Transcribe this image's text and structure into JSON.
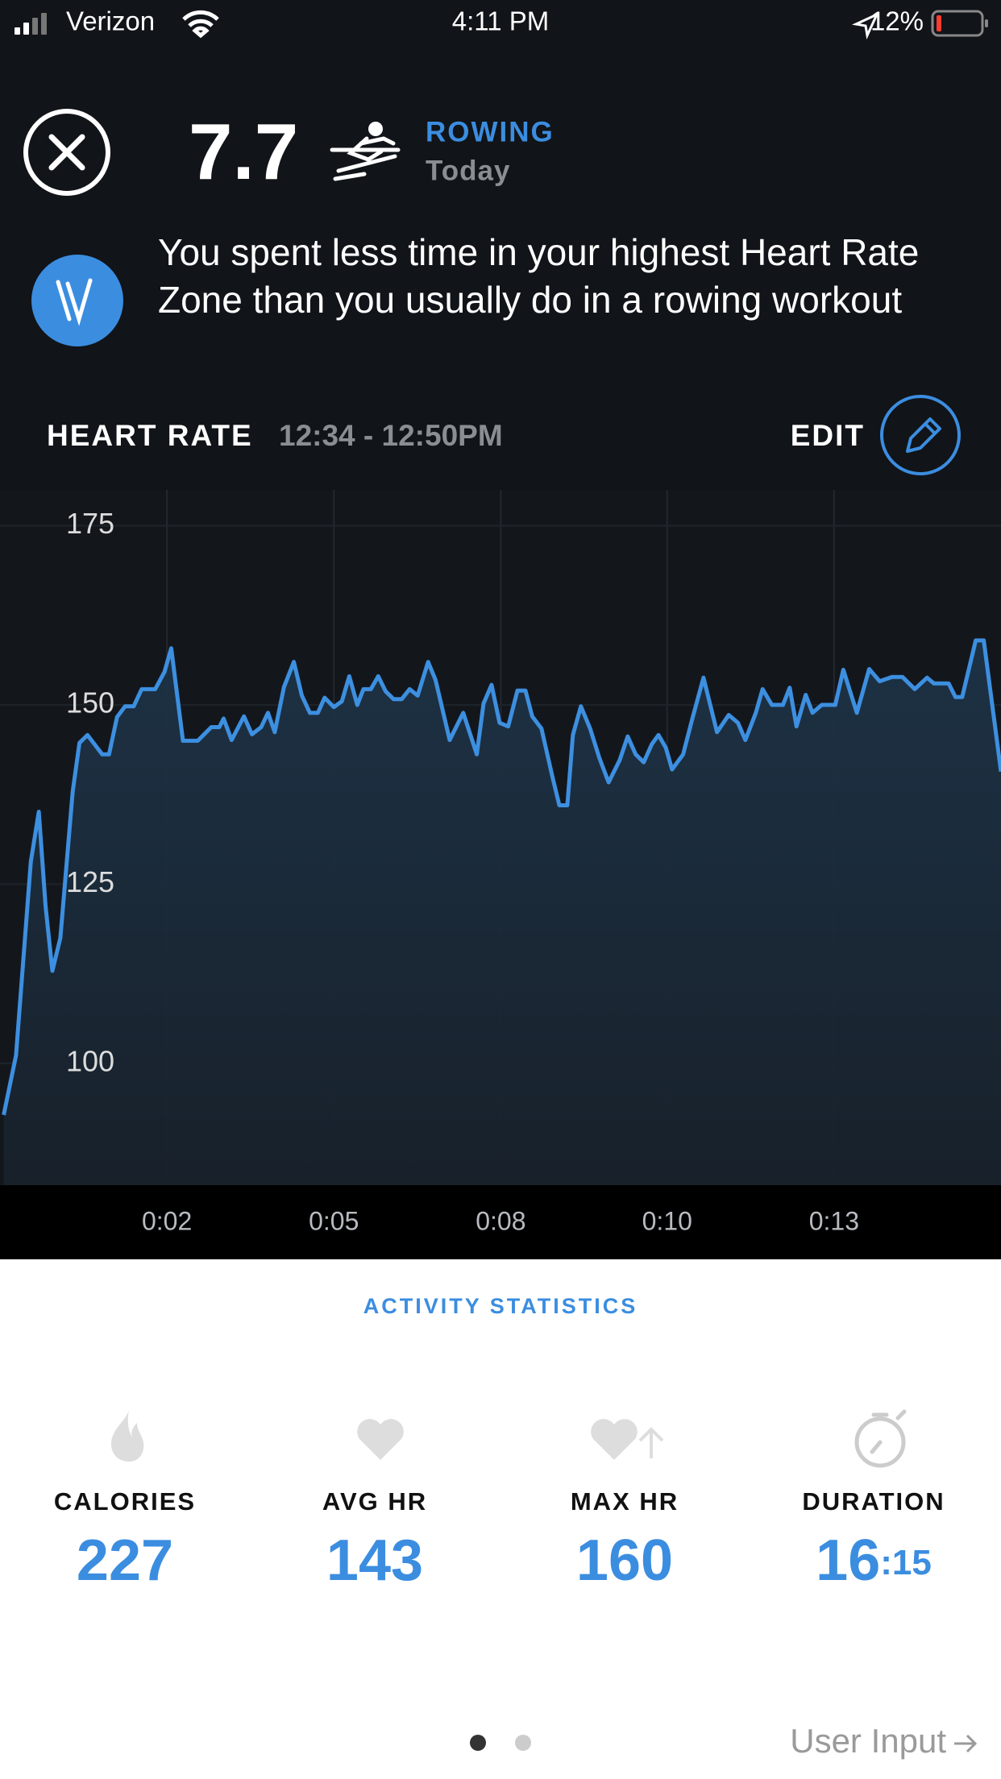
{
  "status_bar": {
    "carrier": "Verizon",
    "time": "4:11 PM",
    "battery": "12%"
  },
  "header": {
    "score": "7.7",
    "activity": "ROWING",
    "date": "Today"
  },
  "insight": "You spent less time in your highest Heart Rate Zone than you usually do in a rowing workout",
  "heart_rate": {
    "title": "HEART RATE",
    "time_range": "12:34 - 12:50PM",
    "edit": "EDIT"
  },
  "chart_data": {
    "type": "line",
    "x": [
      0.06,
      0.26,
      0.5,
      0.63,
      0.74,
      0.85,
      0.98,
      1.18,
      1.29,
      1.42,
      1.66,
      1.77,
      1.9,
      2.03,
      2.17,
      2.3,
      2.52,
      2.67,
      2.78,
      2.97,
      3.21,
      3.43,
      3.56,
      3.63,
      3.76,
      3.96,
      4.09,
      4.24,
      4.35,
      4.46,
      4.61,
      4.77,
      4.9,
      5.03,
      5.16,
      5.27,
      5.42,
      5.55,
      5.67,
      5.8,
      5.9,
      6.02,
      6.14,
      6.26,
      6.39,
      6.52,
      6.65,
      6.78,
      6.95,
      7.07,
      7.3,
      7.52,
      7.74,
      7.85,
      7.98,
      8.11,
      8.25,
      8.4,
      8.53,
      8.64,
      8.79,
      8.97,
      9.08,
      9.21,
      9.3,
      9.43,
      9.58,
      9.73,
      9.88,
      10.06,
      10.19,
      10.32,
      10.45,
      10.58,
      10.69,
      10.81,
      10.91,
      11.09,
      11.24,
      11.42,
      11.64,
      11.83,
      11.98,
      12.1,
      12.27,
      12.38,
      12.53,
      12.71,
      12.82,
      12.93,
      13.08,
      13.19,
      13.34,
      13.56,
      13.69,
      13.91,
      14.11,
      14.28,
      14.48,
      14.65,
      14.85,
      15.05,
      15.16,
      15.4,
      15.51,
      15.62,
      15.84,
      15.97,
      16.25
    ],
    "series": [
      {
        "color": "#3d8fe0",
        "values": [
          92.8,
          101.1,
          128.1,
          135.1,
          121.9,
          112.9,
          117.5,
          137.9,
          144.7,
          145.8,
          143.1,
          143.1,
          148.3,
          149.8,
          149.8,
          152.2,
          152.2,
          154.6,
          157.9,
          145,
          145,
          146.9,
          146.9,
          148.1,
          145.1,
          148.4,
          145.9,
          146.9,
          148.9,
          146.2,
          152.5,
          156,
          151.3,
          148.9,
          148.9,
          151,
          149.7,
          150.5,
          154,
          150,
          152.2,
          152.2,
          154,
          151.9,
          150.8,
          150.8,
          152.2,
          151.3,
          156,
          153.5,
          145.1,
          148.9,
          143.1,
          150.2,
          152.8,
          147.5,
          147,
          152,
          152,
          148.4,
          146.7,
          139.9,
          136,
          136,
          145.8,
          149.8,
          146.7,
          142.6,
          139.2,
          142.3,
          145.6,
          143.1,
          142,
          144.5,
          145.8,
          144,
          141,
          143.1,
          148.1,
          153.8,
          146.2,
          148.6,
          147.5,
          145.1,
          148.9,
          152.2,
          150,
          150,
          152.4,
          147,
          151.4,
          148.9,
          150,
          150,
          154.9,
          148.9,
          155,
          153.3,
          153.9,
          153.9,
          152.2,
          153.8,
          153,
          153,
          151.1,
          151.1,
          159,
          159,
          140.7
        ]
      }
    ],
    "xlim": [
      0,
      16.25
    ],
    "xticks": [
      {
        "value": 2.71,
        "label": "0:02"
      },
      {
        "value": 5.42,
        "label": "0:05"
      },
      {
        "value": 8.13,
        "label": "0:08"
      },
      {
        "value": 10.83,
        "label": "0:10"
      },
      {
        "value": 13.54,
        "label": "0:13"
      }
    ],
    "ylim": [
      83,
      180
    ],
    "yticks": [
      100,
      125,
      150,
      175
    ],
    "grid": true
  },
  "statistics": {
    "title": "ACTIVITY STATISTICS",
    "items": [
      {
        "label": "CALORIES",
        "value": 227
      },
      {
        "label": "AVG HR",
        "value": 143
      },
      {
        "label": "MAX HR",
        "value": 160
      },
      {
        "label": "DURATION",
        "value": 16,
        "unit": ":15"
      }
    ]
  },
  "footer": {
    "link": "User Input"
  }
}
